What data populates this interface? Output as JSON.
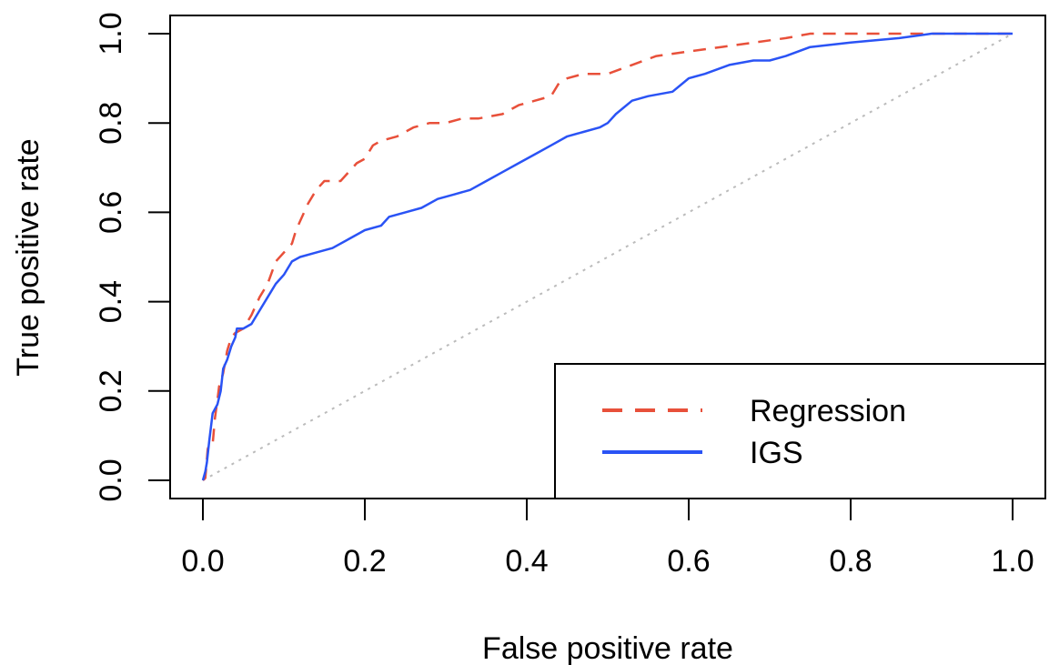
{
  "chart_data": {
    "type": "line",
    "title": "",
    "xlabel": "False positive rate",
    "ylabel": "True positive rate",
    "xlim": [
      0.0,
      1.0
    ],
    "ylim": [
      0.0,
      1.0
    ],
    "x_ticks": [
      "0.0",
      "0.2",
      "0.4",
      "0.6",
      "0.8",
      "1.0"
    ],
    "y_ticks": [
      "0.0",
      "0.2",
      "0.4",
      "0.6",
      "0.8",
      "1.0"
    ],
    "grid": false,
    "legend_position": "bottom-right",
    "reference_line": {
      "style": "dotted",
      "color": "#bbbbbb",
      "x": [
        0.0,
        1.0
      ],
      "y": [
        0.0,
        1.0
      ]
    },
    "series": [
      {
        "name": "Regression",
        "style": "dashed",
        "color": "#e8503a",
        "x": [
          0.0,
          0.003,
          0.006,
          0.008,
          0.012,
          0.015,
          0.018,
          0.02,
          0.025,
          0.03,
          0.035,
          0.04,
          0.05,
          0.06,
          0.07,
          0.08,
          0.09,
          0.1,
          0.11,
          0.115,
          0.12,
          0.13,
          0.14,
          0.15,
          0.17,
          0.18,
          0.19,
          0.2,
          0.21,
          0.22,
          0.24,
          0.26,
          0.28,
          0.3,
          0.32,
          0.34,
          0.37,
          0.39,
          0.41,
          0.43,
          0.44,
          0.45,
          0.47,
          0.5,
          0.53,
          0.56,
          0.6,
          0.64,
          0.68,
          0.72,
          0.75,
          0.8,
          0.9,
          1.0
        ],
        "y": [
          0.0,
          0.005,
          0.07,
          0.08,
          0.08,
          0.14,
          0.18,
          0.21,
          0.24,
          0.29,
          0.32,
          0.33,
          0.34,
          0.37,
          0.41,
          0.44,
          0.49,
          0.51,
          0.53,
          0.56,
          0.58,
          0.62,
          0.65,
          0.67,
          0.67,
          0.69,
          0.71,
          0.72,
          0.75,
          0.76,
          0.77,
          0.79,
          0.8,
          0.8,
          0.81,
          0.81,
          0.82,
          0.84,
          0.85,
          0.86,
          0.89,
          0.9,
          0.91,
          0.91,
          0.93,
          0.95,
          0.96,
          0.97,
          0.98,
          0.99,
          1.0,
          1.0,
          1.0,
          1.0
        ]
      },
      {
        "name": "IGS",
        "style": "solid",
        "color": "#2a53f5",
        "x": [
          0.0,
          0.003,
          0.005,
          0.008,
          0.012,
          0.018,
          0.022,
          0.025,
          0.03,
          0.035,
          0.04,
          0.042,
          0.05,
          0.06,
          0.07,
          0.08,
          0.09,
          0.1,
          0.11,
          0.12,
          0.14,
          0.16,
          0.18,
          0.2,
          0.22,
          0.23,
          0.25,
          0.27,
          0.29,
          0.31,
          0.33,
          0.35,
          0.37,
          0.39,
          0.41,
          0.43,
          0.45,
          0.47,
          0.49,
          0.5,
          0.51,
          0.53,
          0.55,
          0.58,
          0.6,
          0.62,
          0.65,
          0.68,
          0.7,
          0.72,
          0.75,
          0.8,
          0.86,
          0.9,
          0.95,
          1.0
        ],
        "y": [
          0.0,
          0.02,
          0.04,
          0.09,
          0.15,
          0.17,
          0.2,
          0.25,
          0.27,
          0.3,
          0.32,
          0.34,
          0.34,
          0.35,
          0.38,
          0.41,
          0.44,
          0.46,
          0.49,
          0.5,
          0.51,
          0.52,
          0.54,
          0.56,
          0.57,
          0.59,
          0.6,
          0.61,
          0.63,
          0.64,
          0.65,
          0.67,
          0.69,
          0.71,
          0.73,
          0.75,
          0.77,
          0.78,
          0.79,
          0.8,
          0.82,
          0.85,
          0.86,
          0.87,
          0.9,
          0.91,
          0.93,
          0.94,
          0.94,
          0.95,
          0.97,
          0.98,
          0.99,
          1.0,
          1.0,
          1.0
        ]
      }
    ]
  }
}
